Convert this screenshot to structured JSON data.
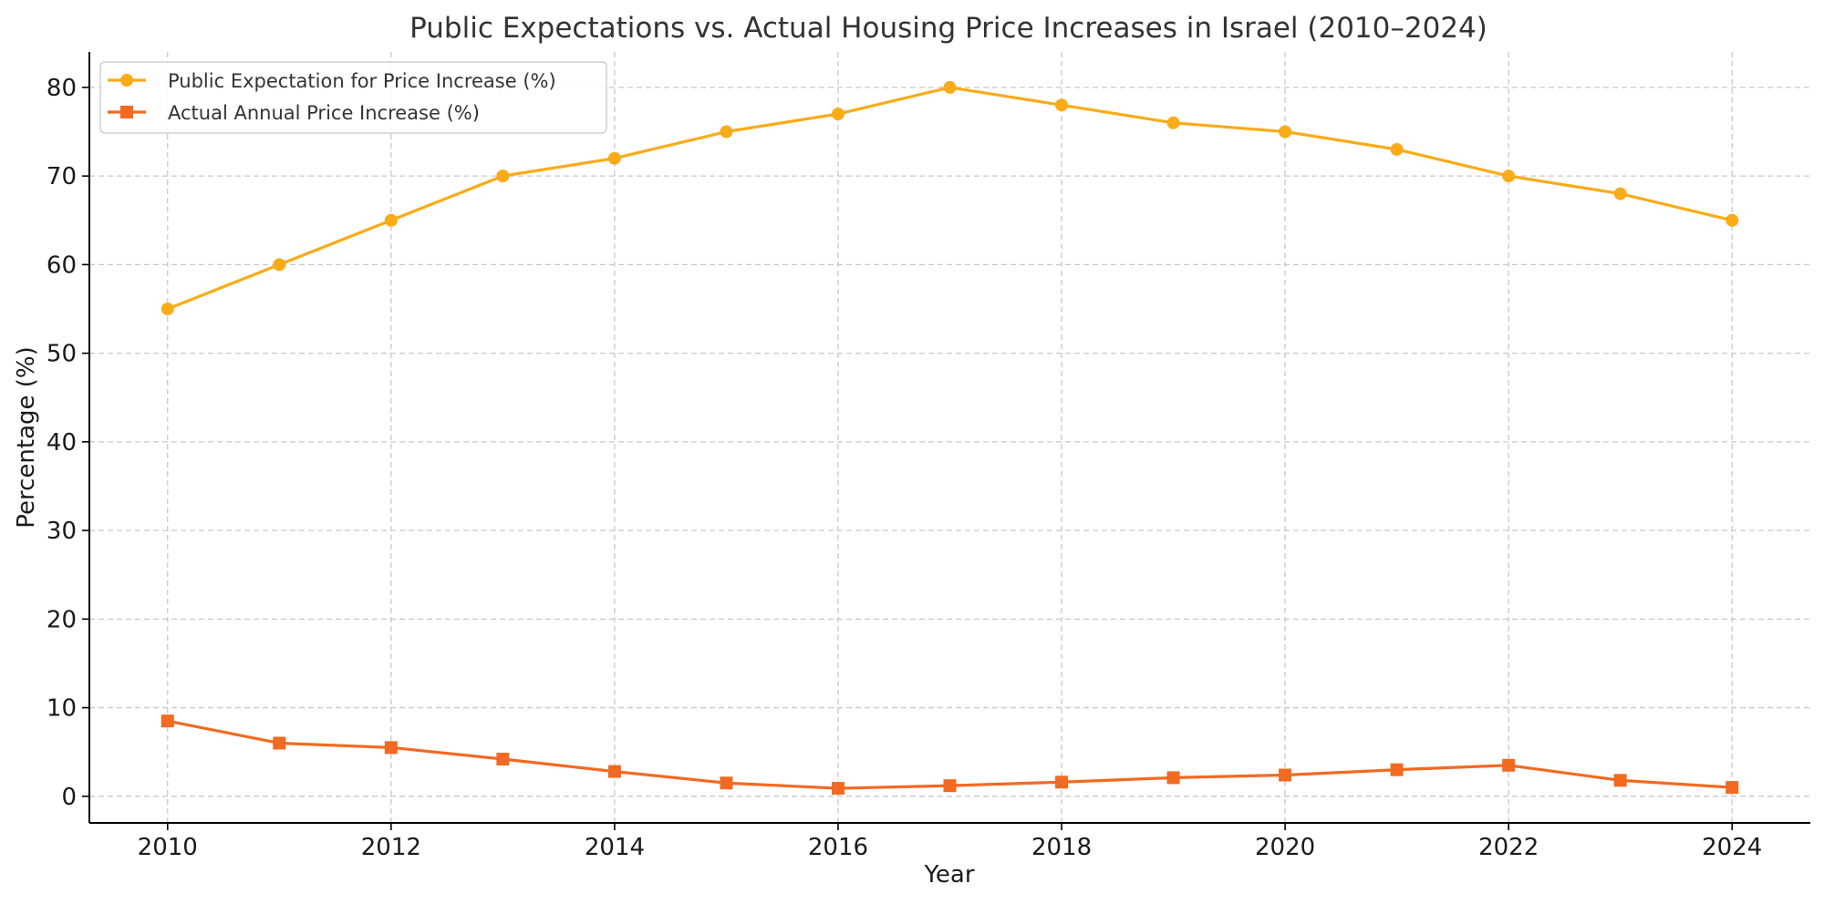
{
  "chart_data": {
    "type": "line",
    "title": "Public Expectations vs. Actual Housing Price Increases in Israel (2010–2024)",
    "xlabel": "Year",
    "ylabel": "Percentage (%)",
    "x": [
      2010,
      2011,
      2012,
      2013,
      2014,
      2015,
      2016,
      2017,
      2018,
      2019,
      2020,
      2021,
      2022,
      2023,
      2024
    ],
    "xlim": [
      2009.3,
      2024.7
    ],
    "ylim": [
      -3,
      84
    ],
    "xticks": [
      2010,
      2012,
      2014,
      2016,
      2018,
      2020,
      2022,
      2024
    ],
    "yticks": [
      0,
      10,
      20,
      30,
      40,
      50,
      60,
      70,
      80
    ],
    "grid": true,
    "legend_position": "top-left",
    "series": [
      {
        "name": "Public Expectation for Price Increase (%)",
        "color": "#FAAB18",
        "marker": "circle",
        "values": [
          55,
          60,
          65,
          70,
          72,
          75,
          77,
          80,
          78,
          76,
          75,
          73,
          70,
          68,
          65
        ]
      },
      {
        "name": "Actual Annual Price Increase (%)",
        "color": "#F26A22",
        "marker": "square",
        "values": [
          8.5,
          6.0,
          5.5,
          4.2,
          2.8,
          1.5,
          0.9,
          1.2,
          1.6,
          2.1,
          2.4,
          3.0,
          3.5,
          1.8,
          1.0
        ]
      }
    ]
  }
}
